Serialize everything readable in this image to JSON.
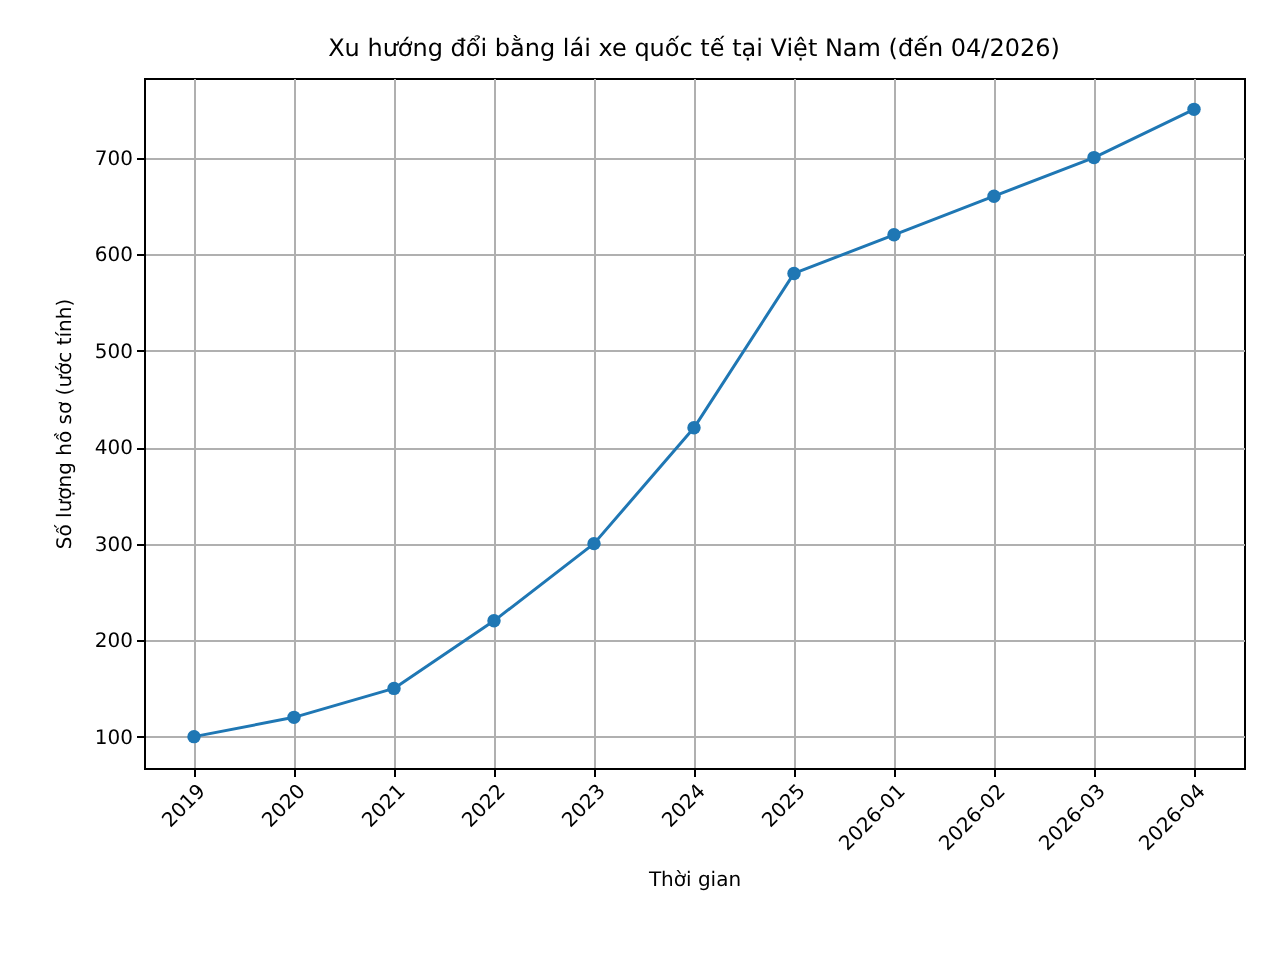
{
  "chart_data": {
    "type": "line",
    "title": "Xu hướng đổi bằng lái xe quốc tế tại Việt Nam (đến 04/2026)",
    "xlabel": "Thời gian",
    "ylabel": "Số lượng hồ sơ (ước tính)",
    "categories": [
      "2019",
      "2020",
      "2021",
      "2022",
      "2023",
      "2024",
      "2025",
      "2026-01",
      "2026-02",
      "2026-03",
      "2026-04"
    ],
    "series": [
      {
        "color": "#1f77b4",
        "values": [
          100,
          120,
          150,
          220,
          300,
          420,
          580,
          620,
          660,
          700,
          750
        ]
      }
    ],
    "ylim": [
      67.5,
      782.5
    ],
    "yticks": [
      100,
      200,
      300,
      400,
      500,
      600,
      700
    ],
    "grid": true,
    "marker": "circle"
  }
}
